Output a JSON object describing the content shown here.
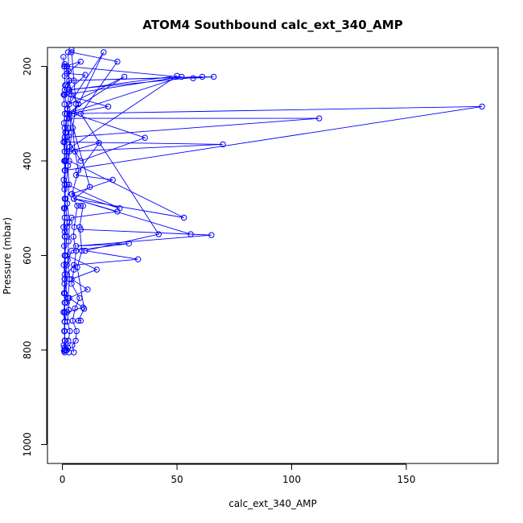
{
  "chart_data": {
    "type": "line",
    "title": "ATOM4 Southbound calc_ext_340_AMP",
    "xlabel": "calc_ext_340_AMP",
    "ylabel": "Pressure (mbar)",
    "xlim": [
      -6.5,
      190
    ],
    "ylim": [
      1040,
      160
    ],
    "y_reversed": true,
    "x_ticks": [
      0,
      50,
      100,
      150
    ],
    "x_tick_labels": [
      "0",
      "50",
      "100",
      "150"
    ],
    "y_ticks": [
      200,
      400,
      600,
      800,
      1000
    ],
    "y_tick_labels": [
      "200",
      "400",
      "600",
      "800",
      "1000"
    ],
    "grid": false,
    "legend": "none",
    "marker": "open-circle",
    "series_color": "#0000ff",
    "series": [
      {
        "x": [
          2.0,
          4.0,
          2.0,
          1.5,
          1.0,
          50.0,
          3.0,
          1.0,
          3.0,
          112.0,
          2.0,
          1.0,
          70.0,
          2.0,
          1.5,
          1.0,
          183.0,
          3.0,
          4.0,
          1.0,
          2.0,
          2.0,
          1.0,
          1.0,
          1.0,
          1.0,
          1.0,
          2.0,
          1.0
        ],
        "y": [
          200,
          260,
          300,
          340,
          380,
          220,
          250,
          260,
          310,
          310,
          350,
          360,
          365,
          380,
          400,
          420,
          285,
          300,
          340,
          480,
          520,
          560,
          600,
          650,
          700,
          740,
          780,
          800,
          800
        ]
      },
      {
        "x": [
          1.0,
          2.0,
          57.0,
          66.0,
          3.0,
          1.5,
          1.0,
          61.0,
          3.0,
          1.0,
          52.0,
          2.0,
          1.0,
          1.0,
          1.0,
          1.0,
          2.0
        ],
        "y": [
          195,
          200,
          225,
          222,
          230,
          240,
          250,
          222,
          230,
          260,
          222,
          300,
          350,
          400,
          500,
          600,
          700
        ]
      },
      {
        "x": [
          2.0,
          27.0,
          3.0,
          18.0,
          5.0,
          36.0,
          8.0,
          2.0,
          1.0,
          1.0,
          1.0,
          1.0,
          1.0
        ],
        "y": [
          300,
          222,
          280,
          170,
          300,
          351,
          400,
          350,
          450,
          550,
          650,
          720,
          800
        ]
      },
      {
        "x": [
          4.0,
          24.0,
          8.0,
          42.0,
          10.0,
          33.0,
          5.0,
          2.0,
          1.0,
          1.0,
          1.0
        ],
        "y": [
          170,
          190,
          300,
          555,
          590,
          608,
          620,
          640,
          680,
          720,
          760
        ]
      },
      {
        "x": [
          3.0,
          53.0,
          5.0,
          56.0,
          8.0,
          65.0,
          6.0,
          29.0,
          4.0,
          2.0,
          1.0,
          1.0
        ],
        "y": [
          400,
          520,
          480,
          555,
          545,
          557,
          580,
          575,
          590,
          620,
          650,
          700
        ]
      },
      {
        "x": [
          2.0,
          25.0,
          4.0,
          22.0,
          6.0,
          16.0,
          3.0,
          1.5,
          1.0
        ],
        "y": [
          450,
          500,
          470,
          440,
          430,
          362,
          380,
          400,
          420
        ]
      },
      {
        "x": [
          1.0,
          20.0,
          3.0,
          12.0,
          5.0,
          24.0,
          4.0,
          2.0,
          1.0
        ],
        "y": [
          260,
          285,
          300,
          455,
          480,
          507,
          520,
          540,
          560
        ]
      },
      {
        "x": [
          2.0,
          15.0,
          4.0,
          11.0,
          3.0,
          9.0,
          2.0,
          1.0
        ],
        "y": [
          600,
          630,
          650,
          672,
          690,
          710,
          720,
          740
        ]
      },
      {
        "x": [
          1.0,
          8.0,
          2.0,
          10.0,
          3.0,
          7.0,
          2.0,
          1.0,
          1.0
        ],
        "y": [
          200,
          190,
          215,
          218,
          250,
          280,
          310,
          330,
          350
        ]
      },
      {
        "x": [
          0.5,
          0.8,
          1.0,
          1.2,
          0.6,
          0.9,
          1.1,
          0.7,
          1.3,
          0.5,
          1.0,
          0.8,
          1.2,
          0.6,
          0.9,
          1.4,
          0.7,
          1.0,
          0.5,
          1.1,
          0.8,
          1.3,
          0.6,
          1.0,
          0.9,
          0.7,
          1.2,
          0.5,
          1.0,
          0.8,
          1.1,
          0.6,
          0.9,
          1.3,
          0.7,
          1.0
        ],
        "y": [
          180,
          200,
          220,
          240,
          260,
          280,
          300,
          320,
          340,
          360,
          380,
          400,
          420,
          440,
          460,
          480,
          500,
          520,
          540,
          560,
          580,
          600,
          620,
          640,
          660,
          680,
          700,
          720,
          740,
          760,
          780,
          790,
          795,
          800,
          802,
          805
        ]
      },
      {
        "x": [
          2.5,
          2.8,
          3.0,
          2.2,
          2.6,
          3.2,
          2.4,
          2.9,
          2.1,
          3.1,
          2.7,
          2.3,
          3.0,
          2.5,
          2.8,
          2.2,
          3.3,
          2.6,
          2.4,
          2.9
        ],
        "y": [
          170,
          210,
          250,
          290,
          330,
          370,
          410,
          450,
          490,
          530,
          570,
          610,
          650,
          690,
          715,
          740,
          760,
          780,
          795,
          805
        ]
      },
      {
        "x": [
          4.0,
          5.0,
          6.0,
          4.5,
          5.5,
          7.0,
          4.2,
          6.5,
          5.2,
          4.8,
          6.0,
          5.0,
          4.0,
          7.5,
          5.5,
          4.5,
          6.2,
          5.8,
          4.3,
          5.0
        ],
        "y": [
          165,
          230,
          280,
          330,
          380,
          420,
          470,
          495,
          540,
          560,
          590,
          630,
          660,
          690,
          712,
          738,
          760,
          780,
          790,
          805
        ]
      },
      {
        "x": [
          8.0,
          9.0,
          7.5,
          8.5,
          6.5,
          9.5,
          7.0,
          8.0
        ],
        "y": [
          495,
          495,
          540,
          590,
          625,
          713,
          738,
          738
        ]
      }
    ]
  }
}
